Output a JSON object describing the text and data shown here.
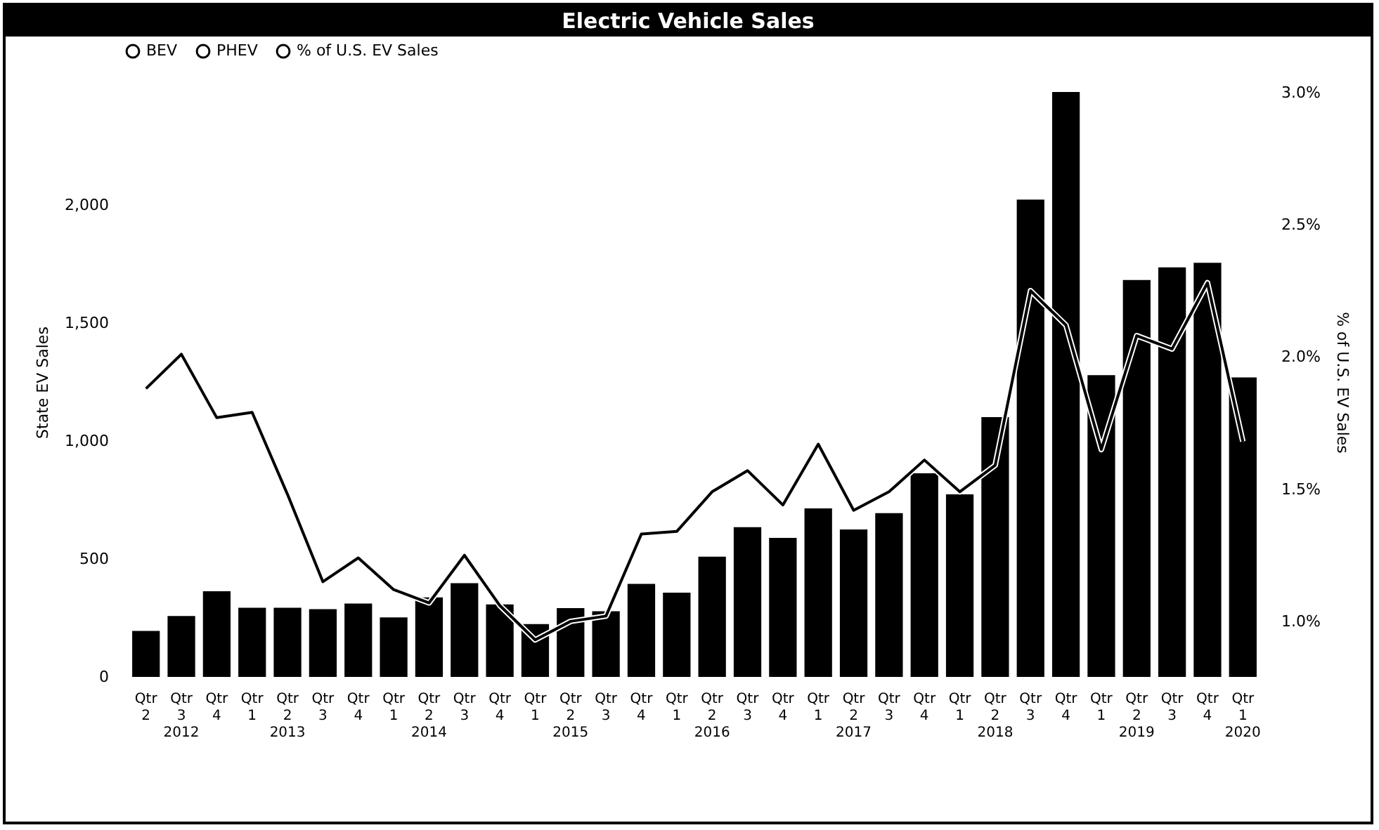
{
  "chart_data": {
    "type": "bar",
    "title": "Electric Vehicle Sales",
    "ylabel": "State EV Sales",
    "y2label": "% of U.S. EV Sales",
    "categories": [
      "Qtr 2",
      "Qtr 3 2012",
      "Qtr 4",
      "Qtr 1",
      "Qtr 2 2013",
      "Qtr 3",
      "Qtr 4",
      "Qtr 1",
      "Qtr 2 2014",
      "Qtr 3",
      "Qtr 4",
      "Qtr 1",
      "Qtr 2 2015",
      "Qtr 3",
      "Qtr 4",
      "Qtr 1",
      "Qtr 2 2016",
      "Qtr 3",
      "Qtr 4",
      "Qtr 1",
      "Qtr 2 2017",
      "Qtr 3",
      "Qtr 4",
      "Qtr 1",
      "Qtr 2 2018",
      "Qtr 3",
      "Qtr 4",
      "Qtr 1",
      "Qtr 2 2019",
      "Qtr 3",
      "Qtr 4",
      "Qtr 1 2020"
    ],
    "series": [
      {
        "color": "#000000",
        "values": [
          195,
          258,
          363,
          293,
          293,
          287,
          311,
          252,
          337,
          397,
          307,
          224,
          292,
          278,
          394,
          357,
          510,
          635,
          589,
          714,
          625,
          694,
          863,
          774,
          1101,
          2023,
          2479,
          1279,
          1682,
          1736,
          1755,
          1269
        ]
      },
      {
        "type": "line",
        "name": "% of U.S. EV Sales",
        "axis": "y2",
        "color": "#000000",
        "values": [
          1.88,
          2.01,
          1.77,
          1.79,
          1.48,
          1.15,
          1.24,
          1.12,
          1.07,
          1.25,
          1.06,
          0.93,
          1.0,
          1.02,
          1.33,
          1.34,
          1.49,
          1.57,
          1.44,
          1.67,
          1.42,
          1.49,
          1.61,
          1.49,
          1.59,
          2.25,
          2.12,
          1.65,
          2.08,
          2.03,
          2.28,
          1.68
        ]
      }
    ],
    "annotations": [
      "BEV",
      "PHEV"
    ],
    "ylim": [
      0,
      2500
    ],
    "yticks": [
      0,
      500,
      {
        "value": 1000,
        "label": "1,000"
      },
      {
        "value": 1500,
        "label": "1,500"
      },
      {
        "value": 2000,
        "label": "2,000"
      }
    ],
    "y2lim": [
      0.79,
      3.02
    ],
    "y2ticks": [
      {
        "value": 1.0,
        "label": "1.0%"
      },
      {
        "value": 1.5,
        "label": "1.5%"
      },
      {
        "value": 2.0,
        "label": "2.0%"
      },
      {
        "value": 2.5,
        "label": "2.5%"
      },
      {
        "value": 3.0,
        "label": "3.0%"
      }
    ],
    "legend": "top",
    "grid": false,
    "marker": "none",
    "line_style": "solid"
  }
}
